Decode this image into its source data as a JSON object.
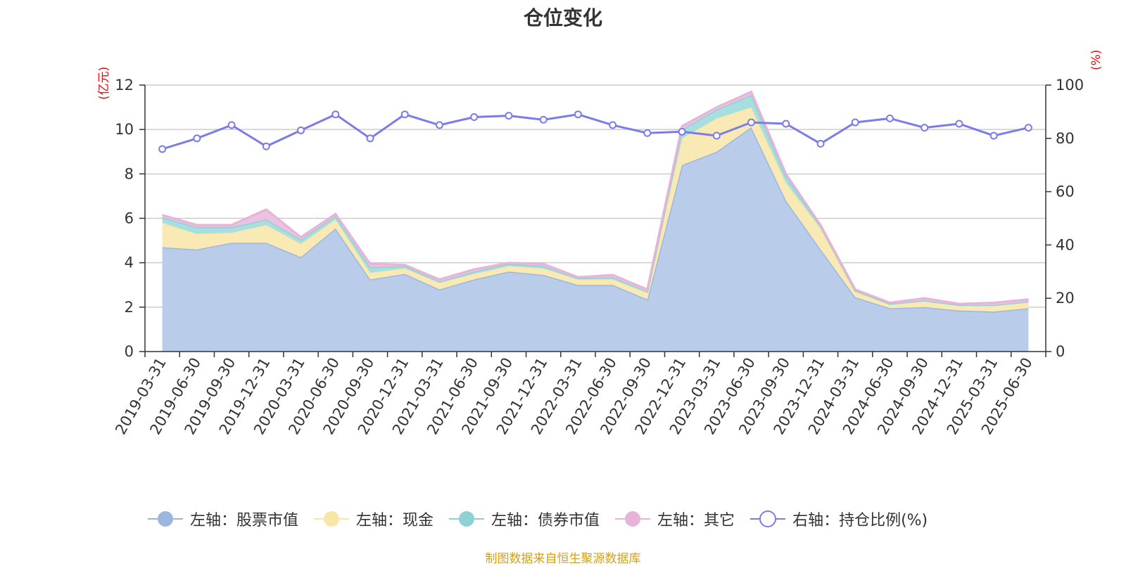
{
  "chart_data": {
    "type": "area",
    "title": "仓位变化",
    "left_axis_label": "(亿元)",
    "right_axis_label": "(%)",
    "left_ylim": [
      0,
      12
    ],
    "left_ticks": [
      0,
      2,
      4,
      6,
      8,
      10,
      12
    ],
    "right_ylim": [
      0,
      100
    ],
    "right_ticks": [
      0,
      20,
      40,
      60,
      80,
      100
    ],
    "categories": [
      "2019-03-31",
      "2019-06-30",
      "2019-09-30",
      "2019-12-31",
      "2020-03-31",
      "2020-06-30",
      "2020-09-30",
      "2020-12-31",
      "2021-03-31",
      "2021-06-30",
      "2021-09-30",
      "2021-12-31",
      "2022-03-31",
      "2022-06-30",
      "2022-09-30",
      "2022-12-31",
      "2023-03-31",
      "2023-06-30",
      "2023-09-30",
      "2023-12-31",
      "2024-03-31",
      "2024-06-30",
      "2024-09-30",
      "2024-12-31",
      "2025-03-31",
      "2025-06-30"
    ],
    "stacked_series": [
      {
        "name": "左轴：股票市值",
        "color": "#9db6e0",
        "fill": "#b9cdeb",
        "values": [
          4.7,
          4.6,
          4.9,
          4.9,
          4.25,
          5.55,
          3.25,
          3.5,
          2.8,
          3.25,
          3.6,
          3.45,
          3.0,
          3.0,
          2.35,
          8.4,
          9.0,
          10.1,
          6.8,
          4.6,
          2.45,
          1.95,
          2.0,
          1.85,
          1.8,
          1.95
        ]
      },
      {
        "name": "左轴：现金",
        "color": "#f7e7a6",
        "fill": "#f9eab5",
        "values": [
          1.1,
          0.7,
          0.45,
          0.8,
          0.6,
          0.4,
          0.3,
          0.25,
          0.3,
          0.25,
          0.25,
          0.3,
          0.25,
          0.25,
          0.3,
          1.2,
          1.5,
          0.9,
          0.8,
          0.95,
          0.25,
          0.2,
          0.3,
          0.25,
          0.3,
          0.3
        ]
      },
      {
        "name": "左轴：债券市值",
        "color": "#8fd2d3",
        "fill": "#a8dedf",
        "values": [
          0.25,
          0.3,
          0.25,
          0.25,
          0.2,
          0.15,
          0.25,
          0.1,
          0.05,
          0.1,
          0.1,
          0.1,
          0.05,
          0.1,
          0.05,
          0.4,
          0.4,
          0.55,
          0.3,
          0.1,
          0.05,
          0.0,
          0.0,
          0.0,
          0.0,
          0.0
        ]
      },
      {
        "name": "左轴：其它",
        "color": "#e6b3d9",
        "fill": "#ecc2e2",
        "values": [
          0.1,
          0.1,
          0.1,
          0.45,
          0.1,
          0.1,
          0.15,
          0.05,
          0.1,
          0.1,
          0.05,
          0.1,
          0.05,
          0.1,
          0.1,
          0.15,
          0.1,
          0.15,
          0.1,
          0.05,
          0.05,
          0.05,
          0.1,
          0.05,
          0.1,
          0.1
        ]
      }
    ],
    "line_series": {
      "name": "右轴：持仓比例(%)",
      "color": "#7b7ce8",
      "values": [
        76,
        80,
        85,
        77,
        83,
        89,
        80,
        89,
        85,
        88,
        88.5,
        87,
        89,
        85,
        82,
        82.5,
        81,
        86,
        85.5,
        78,
        86,
        87.5,
        84,
        85.5,
        81,
        84
      ]
    },
    "legend_position": "bottom",
    "grid": true
  },
  "source_text": "制图数据来自恒生聚源数据库"
}
